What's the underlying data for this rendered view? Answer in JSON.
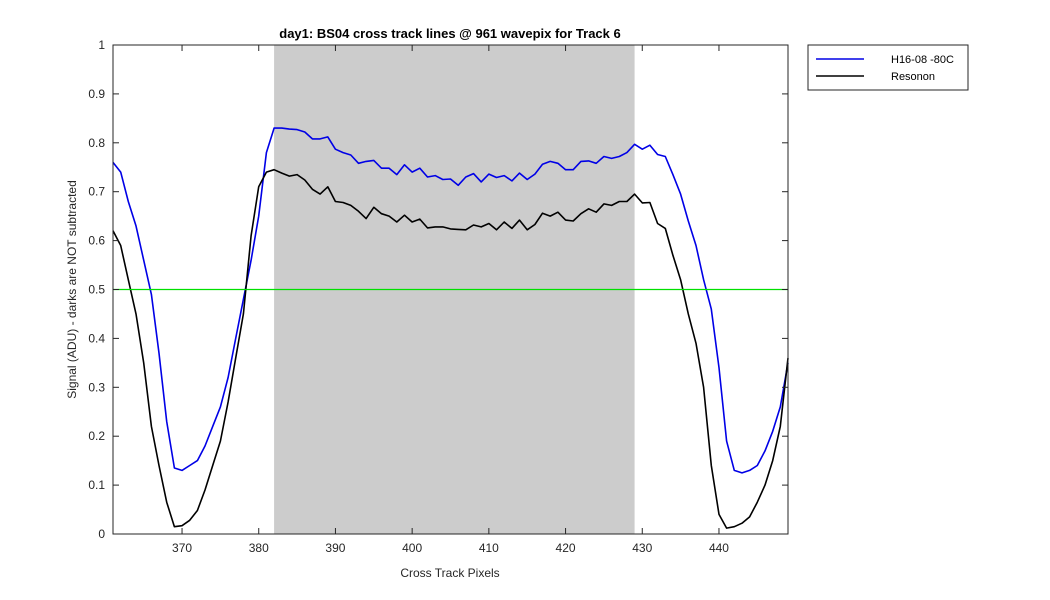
{
  "chart_data": {
    "type": "line",
    "title": "day1: BS04  cross track lines @ 961 wavepix for Track 6",
    "xlabel": "Cross Track Pixels",
    "ylabel": "Signal (ADU) - darks are NOT subtracted",
    "xlim": [
      361,
      449
    ],
    "ylim": [
      0,
      1
    ],
    "xticks": [
      370,
      380,
      390,
      400,
      410,
      420,
      430,
      440
    ],
    "xtick_labels": [
      "370",
      "380",
      "390",
      "400",
      "410",
      "420",
      "430",
      "440"
    ],
    "yticks": [
      0,
      0.1,
      0.2,
      0.3,
      0.4,
      0.5,
      0.6,
      0.7,
      0.8,
      0.9,
      1
    ],
    "ytick_labels": [
      "0",
      "0.1",
      "0.2",
      "0.3",
      "0.4",
      "0.5",
      "0.6",
      "0.7",
      "0.8",
      "0.9",
      "1"
    ],
    "grid": false,
    "legend_position": "outside-top-right",
    "shaded_region": {
      "x": [
        382,
        429
      ],
      "color": "#cccccc"
    },
    "reference_line": {
      "y": 0.5,
      "color": "#00e000"
    },
    "series": [
      {
        "name": "H16-08 -80C",
        "color": "#0000e6",
        "x": [
          361,
          362,
          363,
          364,
          365,
          366,
          367,
          368,
          369,
          370,
          371,
          372,
          373,
          374,
          375,
          376,
          377,
          378,
          379,
          380,
          381,
          382,
          383,
          384,
          385,
          386,
          387,
          388,
          389,
          390,
          391,
          392,
          393,
          394,
          395,
          396,
          397,
          398,
          399,
          400,
          401,
          402,
          403,
          404,
          405,
          406,
          407,
          408,
          409,
          410,
          411,
          412,
          413,
          414,
          415,
          416,
          417,
          418,
          419,
          420,
          421,
          422,
          423,
          424,
          425,
          426,
          427,
          428,
          429,
          430,
          431,
          432,
          433,
          434,
          435,
          436,
          437,
          438,
          439,
          440,
          441,
          442,
          443,
          444,
          445,
          446,
          447,
          448,
          449
        ],
        "values": [
          0.76,
          0.74,
          0.68,
          0.63,
          0.56,
          0.49,
          0.37,
          0.23,
          0.135,
          0.13,
          0.14,
          0.15,
          0.18,
          0.22,
          0.26,
          0.32,
          0.4,
          0.48,
          0.56,
          0.65,
          0.78,
          0.83,
          0.83,
          0.828,
          0.827,
          0.822,
          0.808,
          0.808,
          0.812,
          0.787,
          0.78,
          0.775,
          0.758,
          0.762,
          0.764,
          0.748,
          0.748,
          0.735,
          0.755,
          0.74,
          0.748,
          0.73,
          0.733,
          0.725,
          0.726,
          0.713,
          0.73,
          0.737,
          0.72,
          0.736,
          0.729,
          0.733,
          0.722,
          0.738,
          0.725,
          0.736,
          0.756,
          0.762,
          0.758,
          0.745,
          0.745,
          0.762,
          0.763,
          0.758,
          0.772,
          0.768,
          0.772,
          0.78,
          0.797,
          0.787,
          0.795,
          0.776,
          0.772,
          0.735,
          0.695,
          0.64,
          0.59,
          0.52,
          0.46,
          0.34,
          0.19,
          0.13,
          0.125,
          0.13,
          0.14,
          0.17,
          0.21,
          0.26,
          0.35
        ]
      },
      {
        "name": "Resonon",
        "color": "#000000",
        "x": [
          361,
          362,
          363,
          364,
          365,
          366,
          367,
          368,
          369,
          370,
          371,
          372,
          373,
          374,
          375,
          376,
          377,
          378,
          379,
          380,
          381,
          382,
          383,
          384,
          385,
          386,
          387,
          388,
          389,
          390,
          391,
          392,
          393,
          394,
          395,
          396,
          397,
          398,
          399,
          400,
          401,
          402,
          403,
          404,
          405,
          406,
          407,
          408,
          409,
          410,
          411,
          412,
          413,
          414,
          415,
          416,
          417,
          418,
          419,
          420,
          421,
          422,
          423,
          424,
          425,
          426,
          427,
          428,
          429,
          430,
          431,
          432,
          433,
          434,
          435,
          436,
          437,
          438,
          439,
          440,
          441,
          442,
          443,
          444,
          445,
          446,
          447,
          448,
          449
        ],
        "values": [
          0.62,
          0.59,
          0.52,
          0.45,
          0.35,
          0.22,
          0.14,
          0.065,
          0.015,
          0.017,
          0.028,
          0.048,
          0.09,
          0.14,
          0.19,
          0.27,
          0.36,
          0.45,
          0.61,
          0.71,
          0.74,
          0.745,
          0.738,
          0.732,
          0.735,
          0.724,
          0.705,
          0.695,
          0.71,
          0.68,
          0.678,
          0.672,
          0.66,
          0.645,
          0.668,
          0.655,
          0.65,
          0.638,
          0.652,
          0.638,
          0.644,
          0.626,
          0.628,
          0.628,
          0.624,
          0.623,
          0.622,
          0.632,
          0.628,
          0.635,
          0.622,
          0.638,
          0.625,
          0.642,
          0.622,
          0.633,
          0.656,
          0.65,
          0.658,
          0.642,
          0.64,
          0.655,
          0.665,
          0.658,
          0.675,
          0.672,
          0.68,
          0.68,
          0.695,
          0.677,
          0.678,
          0.635,
          0.625,
          0.57,
          0.52,
          0.45,
          0.39,
          0.3,
          0.14,
          0.04,
          0.012,
          0.015,
          0.022,
          0.035,
          0.065,
          0.1,
          0.15,
          0.22,
          0.36
        ]
      }
    ]
  }
}
